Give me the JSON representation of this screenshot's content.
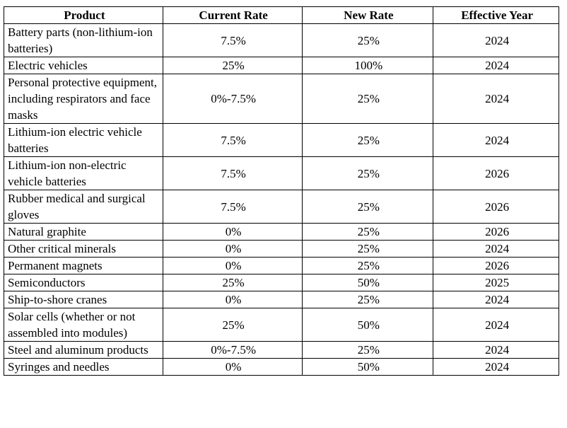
{
  "table": {
    "headers": [
      "Product",
      "Current Rate",
      "New Rate",
      "Effective Year"
    ],
    "rows": [
      [
        "Battery parts (non-lithium-ion batteries)",
        "7.5%",
        "25%",
        "2024"
      ],
      [
        "Electric vehicles",
        "25%",
        "100%",
        "2024"
      ],
      [
        "Personal protective equipment, including respirators and face masks",
        "0%-7.5%",
        "25%",
        "2024"
      ],
      [
        "Lithium-ion electric vehicle batteries",
        "7.5%",
        "25%",
        "2024"
      ],
      [
        "Lithium-ion non-electric vehicle batteries",
        "7.5%",
        "25%",
        "2026"
      ],
      [
        "Rubber medical and surgical gloves",
        "7.5%",
        "25%",
        "2026"
      ],
      [
        "Natural graphite",
        "0%",
        "25%",
        "2026"
      ],
      [
        "Other critical minerals",
        "0%",
        "25%",
        "2024"
      ],
      [
        "Permanent magnets",
        "0%",
        "25%",
        "2026"
      ],
      [
        "Semiconductors",
        "25%",
        "50%",
        "2025"
      ],
      [
        "Ship-to-shore cranes",
        "0%",
        "25%",
        "2024"
      ],
      [
        "Solar cells (whether or not assembled into modules)",
        "25%",
        "50%",
        "2024"
      ],
      [
        "Steel and aluminum products",
        "0%-7.5%",
        "25%",
        "2024"
      ],
      [
        "Syringes and needles",
        "0%",
        "50%",
        "2024"
      ]
    ]
  }
}
